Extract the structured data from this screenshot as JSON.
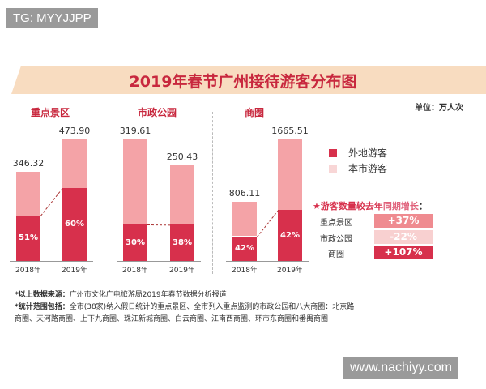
{
  "watermark_top": "TG: MYYJJPP",
  "watermark_bottom": "www.nachiyy.com",
  "chart_data": {
    "type": "bar",
    "title": "2019年春节广州接待游客分布图",
    "unit": "单位：万人次",
    "stacked": true,
    "colors": {
      "外地游客": "#d7304c",
      "本市游客": "#f4a3a7"
    },
    "legend": [
      "外地游客",
      "本市游客"
    ],
    "panels": [
      {
        "name": "重点景区",
        "categories": [
          "2018年",
          "2019年"
        ],
        "totals": [
          "346.32",
          "473.90"
        ],
        "nonlocal_pct": [
          51,
          60
        ],
        "ymax": 473.9
      },
      {
        "name": "市政公园",
        "categories": [
          "2018年",
          "2019年"
        ],
        "totals": [
          "319.61",
          "250.43"
        ],
        "nonlocal_pct": [
          30,
          38
        ],
        "ymax": 319.61
      },
      {
        "name": "商圈",
        "categories": [
          "2018年",
          "2019年"
        ],
        "totals": [
          "806.11",
          "1665.51"
        ],
        "nonlocal_pct": [
          42,
          42
        ],
        "ymax": 1665.51
      }
    ]
  },
  "growth": {
    "title_prefix": "★游客数量较去年",
    "title_highlight": "同期增长",
    "title_suffix": "：",
    "rows": [
      {
        "label": "重点景区",
        "value": "+37%",
        "color": "#ef8b90"
      },
      {
        "label": "市政公园",
        "value": "-22%",
        "color": "#f8d0d0"
      },
      {
        "label": "商圈",
        "value": "+107%",
        "color": "#d7304c"
      }
    ]
  },
  "notes": [
    {
      "label": "*以上数据来源：",
      "text": "广州市文化广电旅游局2019年春节数据分析报道"
    },
    {
      "label": "*统计范围包括：",
      "text": "全市(38家)纳入假日统计的重点景区、全市列入重点监测的市政公园和八大商圈：北京路"
    },
    {
      "label": "",
      "text": "商圈、天河路商圈、上下九商圈、珠江新城商圈、白云商圈、江南西商圈、环市东商圈和番禺商圈"
    }
  ]
}
